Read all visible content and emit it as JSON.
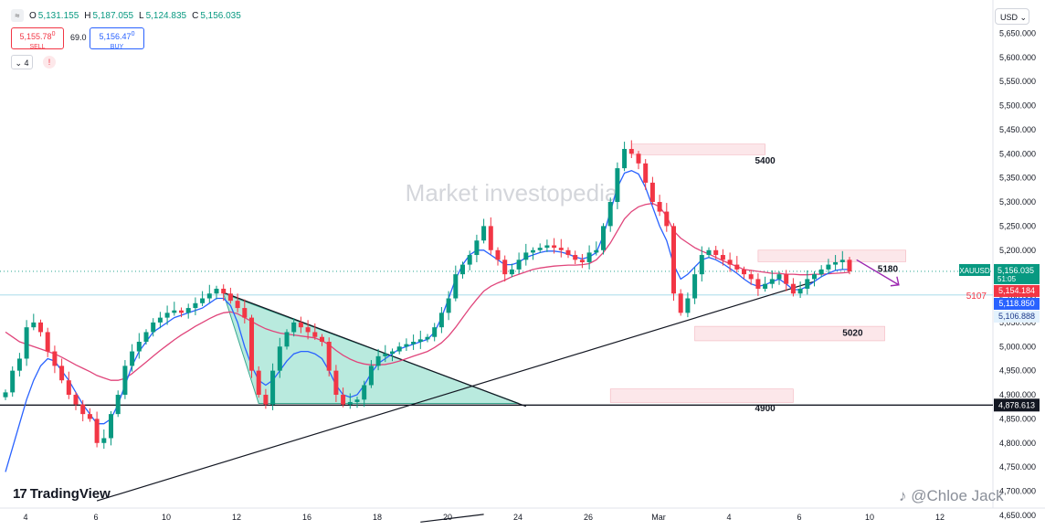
{
  "header": {
    "symbol_icon": "wave-icon",
    "symbol_glyph": "≈",
    "open_label": "O",
    "open_value": "5,131.155",
    "high_label": "H",
    "high_value": "5,187.055",
    "low_label": "L",
    "low_value": "5,124.835",
    "close_label": "C",
    "close_value": "5,156.035",
    "sell_price": "5,155.78",
    "sell_price_sup": "0",
    "sell_label": "SELL",
    "spread": "69.0",
    "buy_price": "5,156.47",
    "buy_price_sup": "0",
    "buy_label": "BUY",
    "indicator_count": "4",
    "alert_glyph": "!",
    "currency": "USD"
  },
  "watermark": "Market investopedia",
  "branding": {
    "logo_text": "TradingView",
    "logo_glyph": "17",
    "author": "Chloe Jack",
    "author_prefix": "@"
  },
  "colors": {
    "up": "#089981",
    "down": "#f23645",
    "ema_fast": "#2962ff",
    "ema_slow": "#e0457b",
    "zone": "#fbdde1",
    "triangle": "#7fd8c3"
  },
  "chart_data": {
    "type": "candlestick",
    "symbol": "XAUUSD",
    "ylim": [
      4665,
      5700
    ],
    "y_ticks": [
      {
        "v": 5650,
        "label": "5,650.000"
      },
      {
        "v": 5600,
        "label": "5,600.000"
      },
      {
        "v": 5550,
        "label": "5,550.000"
      },
      {
        "v": 5500,
        "label": "5,500.000"
      },
      {
        "v": 5450,
        "label": "5,450.000"
      },
      {
        "v": 5400,
        "label": "5,400.000"
      },
      {
        "v": 5350,
        "label": "5,350.000"
      },
      {
        "v": 5300,
        "label": "5,300.000"
      },
      {
        "v": 5250,
        "label": "5,250.000"
      },
      {
        "v": 5200,
        "label": "5,200.000"
      },
      {
        "v": 5150,
        "label": "5,150.000"
      },
      {
        "v": 5100,
        "label": "5,100.000"
      },
      {
        "v": 5050,
        "label": "5,050.000"
      },
      {
        "v": 5000,
        "label": "5,000.000"
      },
      {
        "v": 4950,
        "label": "4,950.000"
      },
      {
        "v": 4900,
        "label": "4,900.000"
      },
      {
        "v": 4850,
        "label": "4,850.000"
      },
      {
        "v": 4800,
        "label": "4,800.000"
      },
      {
        "v": 4750,
        "label": "4,750.000"
      },
      {
        "v": 4700,
        "label": "4,700.000"
      },
      {
        "v": 4650,
        "label": "4,650.000"
      }
    ],
    "x_ticks": [
      {
        "i": 0,
        "label": "4"
      },
      {
        "i": 10,
        "label": "6"
      },
      {
        "i": 20,
        "label": "10"
      },
      {
        "i": 30,
        "label": "12"
      },
      {
        "i": 40,
        "label": "16"
      },
      {
        "i": 50,
        "label": "18"
      },
      {
        "i": 60,
        "label": "20"
      },
      {
        "i": 70,
        "label": "24"
      },
      {
        "i": 80,
        "label": "26"
      },
      {
        "i": 90,
        "label": "Mar"
      },
      {
        "i": 100,
        "label": "4"
      },
      {
        "i": 110,
        "label": "6"
      },
      {
        "i": 120,
        "label": "10"
      },
      {
        "i": 130,
        "label": "12"
      }
    ],
    "closes": [
      4905,
      4950,
      4975,
      5040,
      5050,
      5030,
      4990,
      4960,
      4930,
      4900,
      4880,
      4860,
      4850,
      4800,
      4810,
      4860,
      4900,
      4960,
      4990,
      5010,
      5030,
      5050,
      5060,
      5070,
      5075,
      5070,
      5080,
      5090,
      5100,
      5110,
      5120,
      5110,
      5095,
      5080,
      5060,
      4950,
      4900,
      4880,
      4950,
      5000,
      5030,
      5050,
      5040,
      5030,
      5020,
      5010,
      4950,
      4900,
      4880,
      4885,
      4890,
      4920,
      4960,
      4980,
      4985,
      4990,
      5000,
      5005,
      5010,
      5015,
      5020,
      5040,
      5070,
      5100,
      5150,
      5170,
      5190,
      5220,
      5250,
      5200,
      5180,
      5150,
      5160,
      5180,
      5195,
      5200,
      5205,
      5210,
      5205,
      5200,
      5190,
      5180,
      5175,
      5195,
      5200,
      5250,
      5300,
      5370,
      5410,
      5400,
      5380,
      5340,
      5300,
      5280,
      5250,
      5110,
      5070,
      5100,
      5150,
      5190,
      5200,
      5190,
      5180,
      5170,
      5160,
      5150,
      5140,
      5120,
      5130,
      5140,
      5150,
      5130,
      5110,
      5120,
      5140,
      5150,
      5160,
      5170,
      5175,
      5180,
      5156
    ],
    "ema_fast": [
      4740,
      4790,
      4840,
      4890,
      4930,
      4960,
      4975,
      4970,
      4950,
      4930,
      4905,
      4880,
      4860,
      4840,
      4840,
      4850,
      4880,
      4920,
      4960,
      4990,
      5010,
      5030,
      5040,
      5050,
      5060,
      5065,
      5070,
      5075,
      5080,
      5090,
      5100,
      5100,
      5085,
      5050,
      5000,
      4960,
      4930,
      4920,
      4930,
      4950,
      4970,
      4985,
      4990,
      4990,
      4985,
      4975,
      4950,
      4920,
      4900,
      4895,
      4900,
      4920,
      4945,
      4965,
      4975,
      4985,
      4995,
      5000,
      5005,
      5010,
      5015,
      5030,
      5060,
      5100,
      5140,
      5170,
      5190,
      5200,
      5200,
      5190,
      5180,
      5170,
      5170,
      5175,
      5185,
      5190,
      5195,
      5198,
      5198,
      5196,
      5192,
      5186,
      5182,
      5186,
      5195,
      5230,
      5280,
      5330,
      5360,
      5365,
      5358,
      5330,
      5290,
      5250,
      5220,
      5170,
      5140,
      5150,
      5165,
      5180,
      5185,
      5180,
      5172,
      5162,
      5152,
      5140,
      5130,
      5125,
      5128,
      5135,
      5140,
      5130,
      5118,
      5118,
      5125,
      5135,
      5145,
      5152,
      5158,
      5160,
      5160
    ],
    "ema_slow": [
      5030,
      5020,
      5010,
      5005,
      5000,
      4995,
      4990,
      4985,
      4978,
      4970,
      4962,
      4955,
      4948,
      4940,
      4935,
      4930,
      4930,
      4934,
      4944,
      4956,
      4968,
      4980,
      4992,
      5003,
      5014,
      5024,
      5033,
      5042,
      5050,
      5058,
      5065,
      5070,
      5072,
      5068,
      5060,
      5052,
      5044,
      5037,
      5032,
      5028,
      5026,
      5024,
      5022,
      5020,
      5018,
      5012,
      5004,
      4992,
      4982,
      4974,
      4968,
      4964,
      4962,
      4962,
      4963,
      4966,
      4970,
      4975,
      4980,
      4985,
      4990,
      4998,
      5008,
      5022,
      5040,
      5060,
      5080,
      5098,
      5115,
      5125,
      5132,
      5138,
      5145,
      5150,
      5155,
      5160,
      5163,
      5165,
      5167,
      5168,
      5169,
      5169,
      5170,
      5172,
      5180,
      5195,
      5215,
      5240,
      5265,
      5280,
      5290,
      5295,
      5297,
      5290,
      5270,
      5240,
      5225,
      5215,
      5205,
      5198,
      5192,
      5185,
      5178,
      5172,
      5166,
      5160,
      5158,
      5156,
      5154,
      5152,
      5152,
      5150,
      5150,
      5149,
      5149,
      5150,
      5150,
      5151,
      5152,
      5153,
      5154
    ],
    "zones": [
      {
        "i0": 89,
        "i1": 108,
        "top": 5420,
        "bot": 5398,
        "label": "5400"
      },
      {
        "i0": 107,
        "i1": 128,
        "top": 5200,
        "bot": 5176,
        "label": "5180"
      },
      {
        "i0": 98,
        "i1": 125,
        "top": 5042,
        "bot": 5012,
        "label": "5020"
      },
      {
        "i0": 86,
        "i1": 112,
        "top": 4912,
        "bot": 4884,
        "label": "4900"
      }
    ],
    "triangle": [
      {
        "i": 31,
        "v": 5110
      },
      {
        "i": 73,
        "v": 4882
      },
      {
        "i": 36,
        "v": 4882
      }
    ],
    "trendlines": [
      {
        "from": {
          "i": 13,
          "v": 4680
        },
        "to": {
          "i": 115,
          "v": 5135
        }
      },
      {
        "from": {
          "i": 31,
          "v": 5112
        },
        "to": {
          "i": 74,
          "v": 4876
        }
      },
      {
        "from": {
          "i": 59,
          "v": 4636
        },
        "to": {
          "i": 68,
          "v": 4652
        }
      }
    ],
    "projection": [
      {
        "i": 121,
        "v": 5180
      },
      {
        "i": 127,
        "v": 5128
      }
    ],
    "hlines": [
      {
        "v": 4878.613,
        "label": "4,878.613",
        "style": "solid"
      },
      {
        "v": 5156.035,
        "style": "dotted"
      },
      {
        "v": 5107,
        "label": "5107",
        "style": "faint"
      }
    ],
    "price_labels": [
      {
        "symbol": "XAUUSD",
        "value": "5,156.035",
        "timer": "51:05"
      },
      {
        "value": "5,154.184"
      },
      {
        "value": "5,118.850"
      },
      {
        "value": "5,106.888"
      }
    ]
  }
}
